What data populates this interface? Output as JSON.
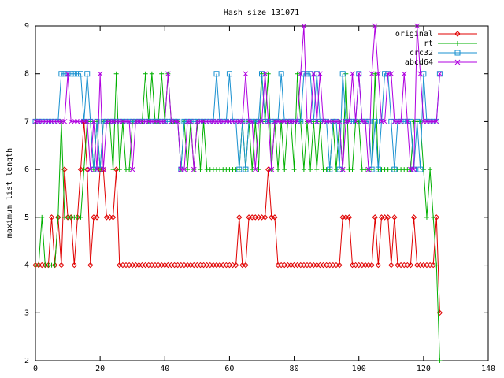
{
  "chart_data": {
    "type": "line",
    "title": "Hash size 131071",
    "y_label": "maximum list length",
    "x": [
      0,
      1,
      2,
      3,
      4,
      5,
      6,
      7,
      8,
      9,
      10,
      11,
      12,
      13,
      14,
      15,
      16,
      17,
      18,
      19,
      20,
      21,
      22,
      23,
      24,
      25,
      26,
      27,
      28,
      29,
      30,
      31,
      32,
      33,
      34,
      35,
      36,
      37,
      38,
      39,
      40,
      41,
      42,
      43,
      44,
      45,
      46,
      47,
      48,
      49,
      50,
      51,
      52,
      53,
      54,
      55,
      56,
      57,
      58,
      59,
      60,
      61,
      62,
      63,
      64,
      65,
      66,
      67,
      68,
      69,
      70,
      71,
      72,
      73,
      74,
      75,
      76,
      77,
      78,
      79,
      80,
      81,
      82,
      83,
      84,
      85,
      86,
      87,
      88,
      89,
      90,
      91,
      92,
      93,
      94,
      95,
      96,
      97,
      98,
      99,
      100,
      101,
      102,
      103,
      104,
      105,
      106,
      107,
      108,
      109,
      110,
      111,
      112,
      113,
      114,
      115,
      116,
      117,
      118,
      119,
      120,
      121,
      122,
      123,
      124,
      125
    ],
    "series": [
      {
        "name": "original",
        "color": "#e00000",
        "marker": "diamond",
        "values": [
          4,
          4,
          4,
          4,
          4,
          5,
          4,
          5,
          4,
          6,
          5,
          5,
          4,
          5,
          6,
          7,
          6,
          4,
          5,
          5,
          6,
          6,
          5,
          5,
          5,
          6,
          4,
          4,
          4,
          4,
          4,
          4,
          4,
          4,
          4,
          4,
          4,
          4,
          4,
          4,
          4,
          4,
          4,
          4,
          4,
          4,
          4,
          4,
          4,
          4,
          4,
          4,
          4,
          4,
          4,
          4,
          4,
          4,
          4,
          4,
          4,
          4,
          4,
          5,
          4,
          4,
          5,
          5,
          5,
          5,
          5,
          5,
          6,
          5,
          5,
          4,
          4,
          4,
          4,
          4,
          4,
          4,
          4,
          4,
          4,
          4,
          4,
          4,
          4,
          4,
          4,
          4,
          4,
          4,
          4,
          5,
          5,
          5,
          4,
          4,
          4,
          4,
          4,
          4,
          4,
          5,
          4,
          5,
          5,
          5,
          4,
          5,
          4,
          4,
          4,
          4,
          4,
          5,
          4,
          4,
          4,
          4,
          4,
          4,
          5,
          3
        ]
      },
      {
        "name": "rt",
        "color": "#00b000",
        "marker": "plus",
        "values": [
          4,
          4,
          5,
          4,
          4,
          4,
          4,
          5,
          7,
          5,
          5,
          5,
          5,
          5,
          5,
          6,
          7,
          7,
          6,
          7,
          6,
          7,
          7,
          7,
          6,
          8,
          6,
          7,
          6,
          6,
          7,
          7,
          7,
          7,
          8,
          7,
          8,
          7,
          7,
          8,
          7,
          8,
          7,
          7,
          7,
          6,
          7,
          6,
          7,
          6,
          7,
          6,
          7,
          6,
          6,
          6,
          6,
          6,
          6,
          6,
          6,
          6,
          6,
          6,
          7,
          6,
          7,
          6,
          7,
          6,
          8,
          7,
          8,
          6,
          7,
          6,
          7,
          6,
          7,
          7,
          6,
          8,
          7,
          6,
          7,
          6,
          7,
          6,
          7,
          6,
          6,
          6,
          7,
          6,
          7,
          6,
          8,
          6,
          6,
          7,
          7,
          6,
          6,
          6,
          6,
          8,
          6,
          6,
          6,
          6,
          6,
          6,
          6,
          6,
          6,
          6,
          6,
          7,
          7,
          7,
          6,
          5,
          6,
          5,
          4,
          2
        ]
      },
      {
        "name": "crc32",
        "color": "#1890d0",
        "marker": "square",
        "values": [
          7,
          7,
          7,
          7,
          7,
          7,
          7,
          7,
          8,
          8,
          8,
          8,
          8,
          8,
          8,
          7,
          8,
          7,
          6,
          7,
          6,
          7,
          7,
          7,
          7,
          7,
          7,
          7,
          7,
          7,
          7,
          7,
          7,
          7,
          7,
          7,
          7,
          7,
          7,
          7,
          7,
          7,
          7,
          7,
          7,
          6,
          7,
          7,
          7,
          7,
          7,
          7,
          7,
          7,
          7,
          7,
          8,
          7,
          7,
          7,
          8,
          7,
          7,
          6,
          7,
          6,
          7,
          7,
          7,
          7,
          8,
          7,
          7,
          7,
          7,
          7,
          8,
          7,
          7,
          7,
          7,
          7,
          7,
          8,
          8,
          8,
          7,
          8,
          7,
          7,
          7,
          6,
          7,
          7,
          6,
          8,
          7,
          7,
          7,
          7,
          8,
          7,
          7,
          7,
          6,
          7,
          6,
          7,
          8,
          8,
          7,
          6,
          7,
          7,
          7,
          7,
          7,
          6,
          7,
          6,
          8,
          7,
          7,
          7,
          7,
          8
        ]
      },
      {
        "name": "abcd64",
        "color": "#b000e0",
        "marker": "cross",
        "values": [
          7,
          7,
          7,
          7,
          7,
          7,
          7,
          7,
          7,
          7,
          8,
          7,
          7,
          7,
          7,
          7,
          7,
          6,
          7,
          6,
          8,
          6,
          7,
          7,
          7,
          7,
          7,
          7,
          7,
          7,
          6,
          7,
          7,
          7,
          7,
          7,
          7,
          7,
          7,
          7,
          7,
          8,
          7,
          7,
          7,
          6,
          6,
          7,
          7,
          6,
          7,
          7,
          7,
          7,
          7,
          7,
          7,
          7,
          7,
          7,
          7,
          7,
          7,
          7,
          7,
          8,
          7,
          7,
          6,
          7,
          7,
          8,
          7,
          6,
          7,
          7,
          7,
          7,
          7,
          7,
          7,
          7,
          8,
          9,
          7,
          7,
          8,
          7,
          8,
          7,
          7,
          7,
          7,
          7,
          7,
          6,
          7,
          7,
          8,
          7,
          8,
          7,
          7,
          6,
          8,
          9,
          8,
          7,
          7,
          8,
          8,
          7,
          7,
          7,
          8,
          7,
          6,
          6,
          9,
          8,
          7,
          7,
          7,
          7,
          7,
          8
        ]
      }
    ],
    "xlim": [
      0,
      140
    ],
    "xticks": [
      0,
      20,
      40,
      60,
      80,
      100,
      120,
      140
    ],
    "ylim": [
      2,
      9
    ],
    "yticks": [
      2,
      3,
      4,
      5,
      6,
      7,
      8,
      9
    ],
    "legend": "top-right"
  }
}
